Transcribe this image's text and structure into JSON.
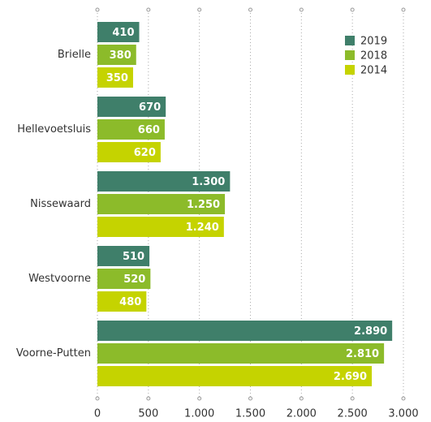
{
  "chart_data": {
    "type": "barh",
    "categories": [
      "Brielle",
      "Hellevoetsluis",
      "Nissewaard",
      "Westvoorne",
      "Voorne-Putten"
    ],
    "series": [
      {
        "name": "2019",
        "color": "#3f7f6a",
        "values": [
          410,
          670,
          1300,
          510,
          2890
        ],
        "value_labels": [
          "410",
          "670",
          "1.300",
          "510",
          "2.890"
        ]
      },
      {
        "name": "2018",
        "color": "#8cbb2a",
        "values": [
          380,
          660,
          1250,
          520,
          2810
        ],
        "value_labels": [
          "380",
          "660",
          "1.250",
          "520",
          "2.810"
        ]
      },
      {
        "name": "2014",
        "color": "#c5d300",
        "values": [
          350,
          620,
          1240,
          480,
          2690
        ],
        "value_labels": [
          "350",
          "620",
          "1.240",
          "480",
          "2.690"
        ]
      }
    ],
    "xlim": [
      0,
      3000
    ],
    "xticks": [
      0,
      500,
      {
        "value": 1000,
        "label": "1.000"
      },
      {
        "value": 1500,
        "label": "1.500"
      },
      {
        "value": 2000,
        "label": "2.000"
      },
      {
        "value": 2500,
        "label": "2.500"
      },
      {
        "value": 3000,
        "label": "3.000"
      }
    ],
    "grid": true,
    "legend": "top-right"
  }
}
